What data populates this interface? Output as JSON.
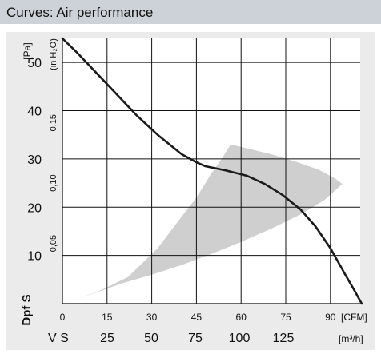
{
  "header": {
    "title": "Curves: Air performance"
  },
  "colors": {
    "header_bg": "#ccd2d8",
    "panel_bg": "#ebebeb",
    "plot_bg": "#ffffff",
    "grid": "#111111",
    "curve": "#1a1a1a",
    "band": "#cfcfcf"
  },
  "chart_data": {
    "type": "line",
    "title": "",
    "x_axis": {
      "unit_label": "[CFM]",
      "range": [
        0,
        100
      ],
      "ticks": [
        0,
        15,
        30,
        45,
        60,
        75,
        90
      ]
    },
    "x_axis_secondary": {
      "symbol": "V S",
      "unit_label": "[m³/h]",
      "ticks": [
        25,
        50,
        75,
        100,
        125
      ]
    },
    "y_axis": {
      "unit_label": "[Pa]",
      "range": [
        0,
        55
      ],
      "ticks": [
        10,
        20,
        30,
        40,
        50
      ],
      "symbol": "Dpf S"
    },
    "y_axis_secondary": {
      "unit_label": "(in H₂O)",
      "ticks": [
        "0,05",
        "0,10",
        "0,15"
      ],
      "tick_values_pa": [
        12.5,
        25,
        37.5
      ]
    },
    "grid": true,
    "series": [
      {
        "points": [
          [
            0,
            55
          ],
          [
            5,
            52
          ],
          [
            15,
            45.5
          ],
          [
            25,
            39
          ],
          [
            32,
            35
          ],
          [
            40,
            31
          ],
          [
            45,
            29.3
          ],
          [
            48,
            28.5
          ],
          [
            55,
            27.6
          ],
          [
            62,
            26.5
          ],
          [
            68,
            24.8
          ],
          [
            74,
            22.5
          ],
          [
            80,
            19.5
          ],
          [
            85,
            16
          ],
          [
            90,
            11.5
          ],
          [
            95,
            6
          ],
          [
            98,
            2.8
          ],
          [
            100.5,
            0
          ]
        ]
      }
    ],
    "shaded_region": {
      "points": [
        [
          0,
          0
        ],
        [
          10,
          2
        ],
        [
          20,
          4.2
        ],
        [
          30,
          6
        ],
        [
          40,
          8
        ],
        [
          50,
          10.3
        ],
        [
          60,
          12.8
        ],
        [
          70,
          15.5
        ],
        [
          80,
          18.5
        ],
        [
          88,
          21.5
        ],
        [
          94,
          24.8
        ],
        [
          91.5,
          26
        ],
        [
          86,
          27.8
        ],
        [
          78,
          29.5
        ],
        [
          70,
          31
        ],
        [
          62,
          32.2
        ],
        [
          56.5,
          33
        ],
        [
          53.5,
          30
        ],
        [
          50,
          27
        ],
        [
          45,
          22
        ],
        [
          40,
          18
        ],
        [
          32,
          11.5
        ],
        [
          22,
          5.5
        ],
        [
          12,
          2.5
        ],
        [
          4,
          0.8
        ],
        [
          0,
          0
        ]
      ]
    }
  }
}
